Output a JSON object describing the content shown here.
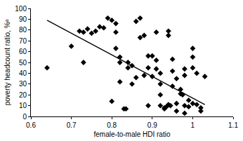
{
  "chart_data": {
    "type": "scatter",
    "xlabel": "female-to-male HDI ratio",
    "ylabel": "poverty headcount ratio, %ᵃ",
    "xlim": [
      0.6,
      1.1
    ],
    "xticks": [
      0.6,
      0.7,
      0.8,
      0.9,
      1,
      1.1
    ],
    "ylim": [
      0,
      100
    ],
    "yticks": [
      0,
      10,
      20,
      30,
      40,
      50,
      60,
      70,
      80,
      90,
      100
    ],
    "grid": false,
    "series": [
      {
        "type": "scatter",
        "marker": "diamond",
        "color": "#000000",
        "x": [
          0.64,
          0.7,
          0.72,
          0.73,
          0.73,
          0.74,
          0.75,
          0.76,
          0.77,
          0.78,
          0.79,
          0.8,
          0.81,
          0.81,
          0.8,
          0.81,
          0.82,
          0.82,
          0.83,
          0.835,
          0.84,
          0.84,
          0.85,
          0.85,
          0.86,
          0.87,
          0.86,
          0.87,
          0.88,
          0.89,
          0.9,
          0.89,
          0.9,
          0.88,
          0.91,
          0.91,
          0.91,
          0.92,
          0.92,
          0.92,
          0.92,
          0.93,
          0.93,
          0.935,
          0.94,
          0.945,
          0.94,
          0.94,
          0.95,
          0.95,
          0.95,
          0.96,
          0.96,
          0.96,
          0.97,
          0.97,
          0.975,
          0.98,
          0.98,
          0.98,
          0.98,
          0.99,
          0.99,
          1.0,
          1.0,
          1.0,
          1.01,
          1.0,
          1.01,
          1.02,
          1.02,
          1.03,
          0.89,
          0.82
        ],
        "values": [
          45,
          65,
          79,
          78,
          50,
          81,
          77,
          79,
          83,
          82,
          91,
          89,
          86,
          78,
          14,
          63,
          55,
          32,
          7,
          7,
          50,
          45,
          47,
          30,
          36,
          91,
          88,
          73,
          75,
          56,
          56,
          45,
          37,
          38,
          78,
          52,
          44,
          40,
          30,
          20,
          10,
          7,
          8,
          9,
          11,
          10,
          79,
          75,
          53,
          42,
          28,
          35,
          12,
          5,
          25,
          21,
          20,
          38,
          44,
          10,
          3,
          9,
          15,
          63,
          55,
          45,
          40,
          12,
          11,
          8,
          5,
          37,
          10,
          50
        ]
      },
      {
        "type": "line",
        "color": "#000000",
        "line_style": "solid",
        "x": [
          0.64,
          1.03
        ],
        "values": [
          89,
          11
        ]
      }
    ]
  }
}
